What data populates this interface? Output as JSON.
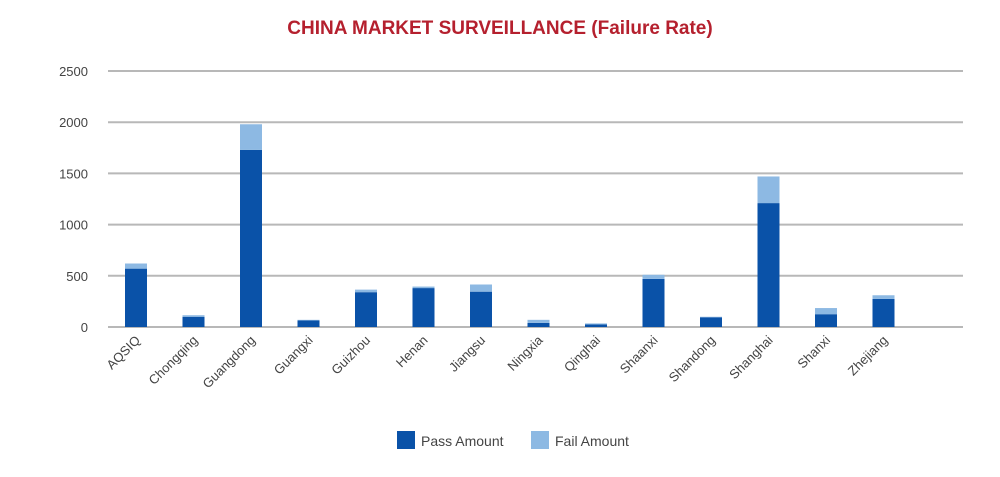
{
  "chart_data": {
    "type": "bar",
    "stacked": true,
    "title": "CHINA MARKET SURVEILLANCE (Failure Rate)",
    "xlabel": "",
    "ylabel": "",
    "ylim": [
      0,
      2500
    ],
    "yticks": [
      0,
      500,
      1000,
      1500,
      2000,
      2500
    ],
    "grid": true,
    "legend_position": "bottom",
    "categories": [
      "AQSIQ",
      "Chongqing",
      "Guangdong",
      "Guangxi",
      "Guizhou",
      "Henan",
      "Jiangsu",
      "Ningxia",
      "Qinghai",
      "Shaanxi",
      "Shandong",
      "Shanghai",
      "Shanxi",
      "Zhejiang"
    ],
    "series": [
      {
        "name": "Pass Amount",
        "color": "#0a52a8",
        "values": [
          570,
          100,
          1730,
          65,
          340,
          380,
          345,
          40,
          25,
          470,
          95,
          1210,
          125,
          275
        ]
      },
      {
        "name": "Fail Amount",
        "color": "#8db9e3",
        "values": [
          50,
          15,
          250,
          5,
          25,
          15,
          70,
          30,
          10,
          40,
          5,
          260,
          60,
          35
        ]
      }
    ]
  }
}
